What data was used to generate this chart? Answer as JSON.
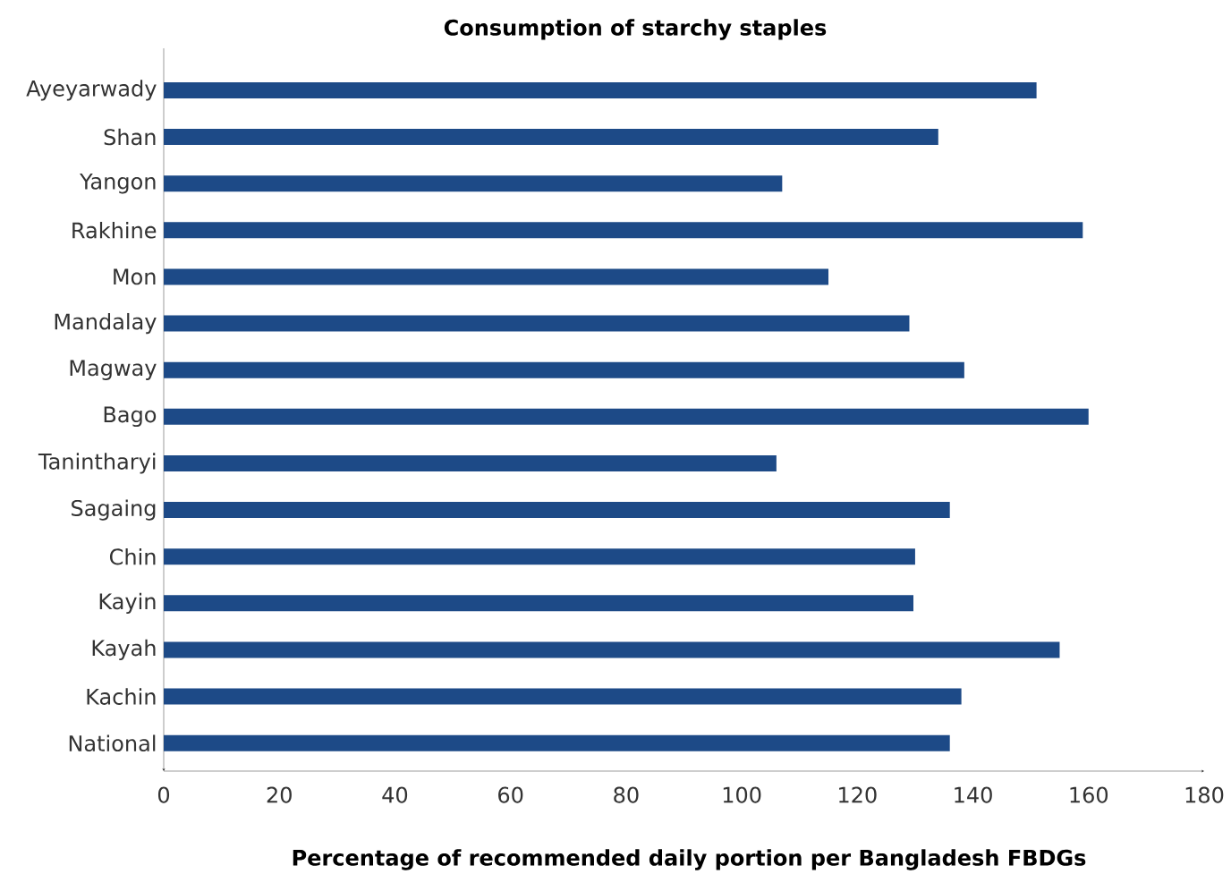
{
  "chart_data": {
    "type": "bar",
    "orientation": "horizontal",
    "title": "Consumption of starchy staples",
    "xlabel": "Percentage of recommended daily portion per Bangladesh FBDGs",
    "categories": [
      "Ayeyarwady",
      "Shan",
      "Yangon",
      "Rakhine",
      "Mon",
      "Mandalay",
      "Magway",
      "Bago",
      "Tanintharyi",
      "Sagaing",
      "Chin",
      "Kayin",
      "Kayah",
      "Kachin",
      "National"
    ],
    "values": [
      151,
      134,
      107,
      159,
      115,
      129,
      138.5,
      160,
      106,
      136,
      130,
      129.7,
      155,
      138,
      136
    ],
    "color": "#1d4a87",
    "xlim": [
      0,
      180
    ],
    "xticks": [
      0,
      20,
      40,
      60,
      80,
      100,
      120,
      140,
      160,
      180
    ]
  }
}
